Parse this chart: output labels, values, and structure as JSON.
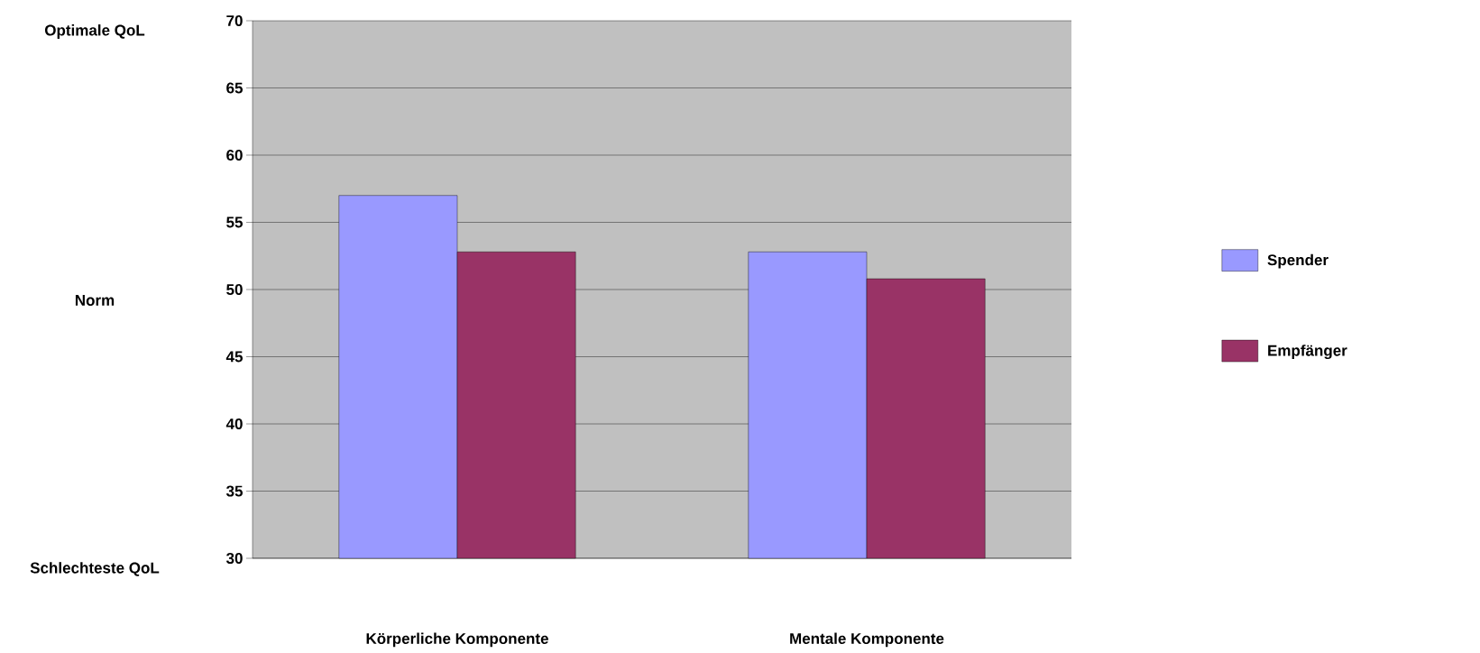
{
  "chart_data": {
    "type": "bar",
    "categories": [
      "Körperliche Komponente",
      "Mentale Komponente"
    ],
    "series": [
      {
        "name": "Spender",
        "color": "#9999ff",
        "values": [
          57.0,
          52.8
        ]
      },
      {
        "name": "Empfänger",
        "color": "#993366",
        "values": [
          52.8,
          50.8
        ]
      }
    ],
    "ylim": [
      30,
      70
    ],
    "yticks": [
      30,
      35,
      40,
      45,
      50,
      55,
      60,
      65,
      70
    ],
    "grid": "y",
    "legend": "right",
    "annotations": [
      "Optimale QoL",
      "Norm",
      "Schlechteste QoL"
    ]
  }
}
